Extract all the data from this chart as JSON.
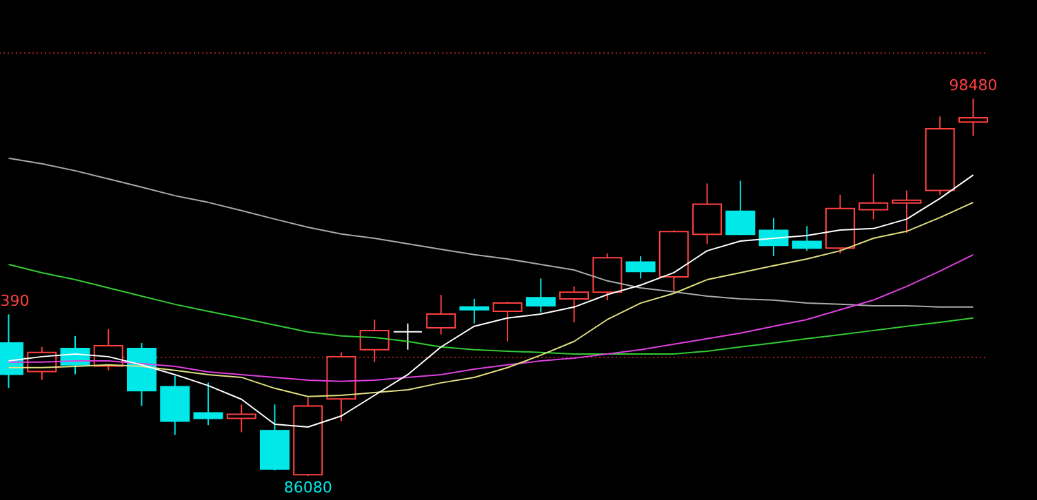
{
  "chart_data": {
    "type": "candlestick",
    "categories": [
      null,
      null,
      null,
      null,
      null,
      null,
      null,
      null,
      null,
      null,
      null,
      null,
      null,
      null,
      null,
      null,
      null,
      null,
      null,
      null,
      null,
      null,
      null,
      null,
      null,
      null,
      null,
      null,
      null,
      null
    ],
    "ohlc": [
      [
        90450,
        91390,
        88970,
        89420
      ],
      [
        89510,
        90320,
        89240,
        90140
      ],
      [
        90270,
        90680,
        89420,
        89730
      ],
      [
        89690,
        90900,
        89550,
        90360
      ],
      [
        90270,
        90450,
        88380,
        88880
      ],
      [
        89010,
        89370,
        87430,
        87880
      ],
      [
        88150,
        89150,
        87750,
        87970
      ],
      [
        87970,
        88430,
        87520,
        88110
      ],
      [
        87570,
        88430,
        86260,
        86310
      ],
      [
        86120,
        88650,
        86080,
        88380
      ],
      [
        88610,
        90140,
        87880,
        90000
      ],
      [
        90230,
        91220,
        89820,
        90860
      ],
      [
        90820,
        91090,
        90230,
        90820
      ],
      [
        90950,
        92030,
        90730,
        91400
      ],
      [
        91630,
        91900,
        91090,
        91540
      ],
      [
        91490,
        91810,
        90500,
        91760
      ],
      [
        91940,
        92570,
        91450,
        91670
      ],
      [
        91900,
        92300,
        91130,
        92120
      ],
      [
        92120,
        93390,
        91850,
        93250
      ],
      [
        93110,
        93300,
        92570,
        92800
      ],
      [
        92620,
        94150,
        92170,
        94110
      ],
      [
        94020,
        95690,
        93700,
        95010
      ],
      [
        94780,
        95780,
        94000,
        94020
      ],
      [
        94150,
        94560,
        93300,
        93660
      ],
      [
        93790,
        94290,
        93480,
        93570
      ],
      [
        93570,
        95320,
        93390,
        94870
      ],
      [
        94830,
        96000,
        94510,
        95050
      ],
      [
        95050,
        95460,
        94060,
        95140
      ],
      [
        95460,
        97890,
        95320,
        97490
      ],
      [
        97710,
        98480,
        97260,
        97850
      ]
    ],
    "colors": [
      "#00e8e8",
      "#ff4040",
      "#00e8e8",
      "#ff4040",
      "#00e8e8",
      "#00e8e8",
      "#00e8e8",
      "#ff4040",
      "#00e8e8",
      "#ff4040",
      "#ff4040",
      "#ff4040",
      "#ffffff",
      "#ff4040",
      "#00e8e8",
      "#ff4040",
      "#00e8e8",
      "#ff4040",
      "#ff4040",
      "#00e8e8",
      "#ff4040",
      "#ff4040",
      "#00e8e8",
      "#00e8e8",
      "#00e8e8",
      "#ff4040",
      "#ff4040",
      "#ff4040",
      "#ff4040",
      "#ff4040"
    ],
    "ylim": [
      85290,
      101720
    ],
    "yticks": [
      {
        "value": 90000,
        "label": null
      },
      {
        "value": 100000,
        "label": null
      }
    ],
    "grid": "y",
    "annotations": [
      {
        "text": "98480",
        "y": 98480
      },
      {
        "text": "86080",
        "y": 86080
      },
      {
        "text": "390",
        "y": 91390
      }
    ],
    "series": [
      {
        "type": "line",
        "color": "#aaaaaa",
        "values": [
          96520,
          96340,
          96110,
          95840,
          95570,
          95290,
          95070,
          94800,
          94520,
          94250,
          94030,
          93890,
          93710,
          93530,
          93350,
          93210,
          93030,
          92850,
          92490,
          92260,
          92130,
          91990,
          91900,
          91860,
          91760,
          91720,
          91670,
          91670,
          91630,
          91630
        ]
      },
      {
        "type": "line",
        "color": "#33cc33",
        "values": [
          93030,
          92760,
          92530,
          92260,
          91990,
          91720,
          91490,
          91270,
          91040,
          90810,
          90680,
          90630,
          90500,
          90320,
          90230,
          90180,
          90140,
          90090,
          90090,
          90090,
          90090,
          90180,
          90320,
          90450,
          90590,
          90720,
          90860,
          91000,
          91130,
          91270
        ]
      },
      {
        "type": "line",
        "color": "#e040e0",
        "values": [
          89820,
          89820,
          89860,
          89860,
          89770,
          89680,
          89500,
          89410,
          89320,
          89230,
          89190,
          89230,
          89320,
          89410,
          89590,
          89730,
          89860,
          89950,
          90090,
          90230,
          90410,
          90590,
          90770,
          91000,
          91220,
          91540,
          91860,
          92310,
          92810,
          93350
        ]
      },
      {
        "type": "line",
        "color": "#e0e080",
        "values": [
          89640,
          89640,
          89680,
          89730,
          89680,
          89550,
          89410,
          89320,
          88960,
          88690,
          88730,
          88820,
          88910,
          89140,
          89320,
          89640,
          90050,
          90500,
          91220,
          91760,
          92080,
          92530,
          92760,
          92990,
          93210,
          93480,
          93890,
          94120,
          94570,
          95070
        ]
      },
      {
        "type": "line",
        "color": "#ffffff",
        "values": [
          89860,
          90000,
          90090,
          90000,
          89730,
          89410,
          89050,
          88600,
          87780,
          87690,
          88050,
          88730,
          89410,
          90320,
          91000,
          91270,
          91400,
          91630,
          92040,
          92350,
          92760,
          93480,
          93800,
          93890,
          93980,
          94160,
          94210,
          94520,
          95200,
          95970
        ]
      }
    ]
  }
}
